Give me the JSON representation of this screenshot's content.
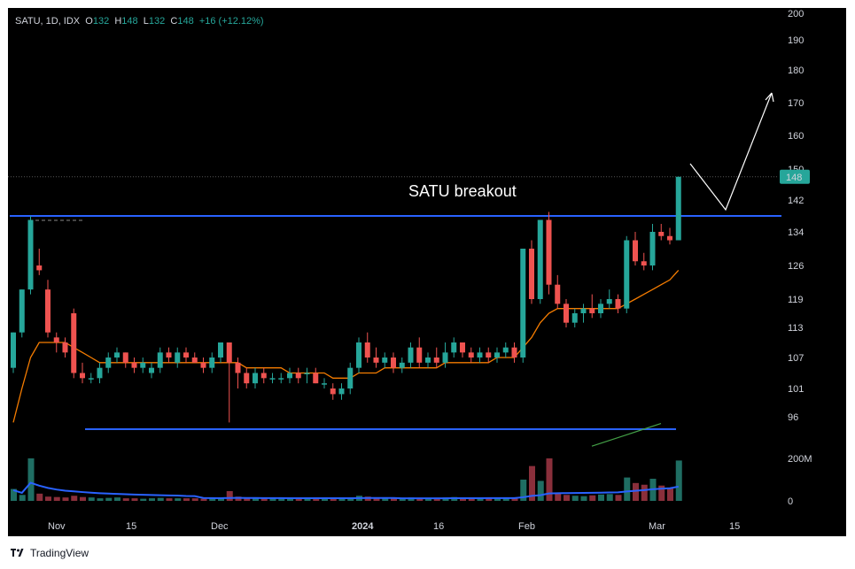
{
  "legend": {
    "symbol": "SATU, 1D, IDX",
    "o_label": "O",
    "o": "132",
    "h_label": "H",
    "h": "148",
    "l_label": "L",
    "l": "132",
    "c_label": "C",
    "c": "148",
    "change": "+16 (+12.12%)"
  },
  "annotation": "SATU breakout",
  "brand": "TradingView",
  "colors": {
    "up": "#26a69a",
    "down": "#ef5350",
    "level_line": "#2962ff",
    "ema": "#f57c00",
    "vol_ma": "#2962ff",
    "long_ma": "#43a047",
    "arrow": "#ffffff",
    "bg": "#000000"
  },
  "chart_data": {
    "type": "candlestick",
    "symbol": "SATU",
    "timeframe": "1D",
    "exchange": "IDX",
    "y_ticks": [
      "200",
      "190",
      "180",
      "170",
      "160",
      "150",
      "142",
      "134",
      "126",
      "119",
      "113",
      "107",
      "101",
      "96"
    ],
    "volume_ticks": [
      "200M",
      "0"
    ],
    "x_ticks": [
      "Nov",
      "15",
      "Dec",
      "2024",
      "16",
      "Feb",
      "Mar",
      "15"
    ],
    "last_price": "148",
    "candles": [
      [
        105,
        112,
        104,
        112
      ],
      [
        112,
        121,
        111,
        121
      ],
      [
        121,
        138,
        120,
        137
      ],
      [
        126,
        130,
        124,
        125
      ],
      [
        121,
        123,
        111,
        112
      ],
      [
        111,
        112,
        108,
        110
      ],
      [
        110,
        111,
        107,
        108
      ],
      [
        116,
        117,
        103,
        104
      ],
      [
        104,
        106,
        102,
        103
      ],
      [
        103,
        104,
        102,
        103
      ],
      [
        103,
        106,
        102,
        105
      ],
      [
        105,
        108,
        104,
        107
      ],
      [
        107,
        109,
        106,
        108
      ],
      [
        108,
        108,
        105,
        106
      ],
      [
        106,
        107,
        104,
        105
      ],
      [
        105,
        107,
        104,
        106
      ],
      [
        104,
        106,
        103,
        105
      ],
      [
        105,
        109,
        104,
        108
      ],
      [
        108,
        109,
        106,
        107
      ],
      [
        106,
        109,
        105,
        108
      ],
      [
        108,
        109,
        106,
        107
      ],
      [
        107,
        108,
        106,
        106
      ],
      [
        106,
        107,
        104,
        105
      ],
      [
        105,
        108,
        104,
        107
      ],
      [
        107,
        110,
        106,
        110
      ],
      [
        110,
        110,
        95,
        106
      ],
      [
        106,
        107,
        101,
        104
      ],
      [
        104,
        105,
        101,
        102
      ],
      [
        102,
        105,
        101,
        104
      ],
      [
        104,
        105,
        102,
        103
      ],
      [
        103,
        104,
        102,
        103
      ],
      [
        103,
        104,
        102,
        103
      ],
      [
        103,
        105,
        102,
        104
      ],
      [
        104,
        105,
        102,
        103
      ],
      [
        104,
        105,
        102,
        104
      ],
      [
        104,
        105,
        102,
        102
      ],
      [
        102,
        103,
        101,
        102
      ],
      [
        101,
        102,
        99,
        100
      ],
      [
        100,
        102,
        99,
        101
      ],
      [
        101,
        106,
        100,
        105
      ],
      [
        105,
        111,
        104,
        110
      ],
      [
        110,
        112,
        106,
        107
      ],
      [
        107,
        109,
        105,
        106
      ],
      [
        106,
        108,
        105,
        107
      ],
      [
        107,
        108,
        104,
        105
      ],
      [
        105,
        107,
        104,
        106
      ],
      [
        106,
        110,
        105,
        109
      ],
      [
        109,
        111,
        105,
        106
      ],
      [
        106,
        108,
        105,
        107
      ],
      [
        107,
        109,
        105,
        106
      ],
      [
        106,
        110,
        105,
        108
      ],
      [
        108,
        111,
        107,
        110
      ],
      [
        110,
        110,
        107,
        108
      ],
      [
        108,
        109,
        106,
        107
      ],
      [
        107,
        109,
        106,
        108
      ],
      [
        108,
        109,
        106,
        107
      ],
      [
        107,
        109,
        106,
        108
      ],
      [
        108,
        110,
        107,
        109
      ],
      [
        109,
        110,
        106,
        107
      ],
      [
        107,
        130,
        106,
        130
      ],
      [
        130,
        132,
        118,
        119
      ],
      [
        119,
        137,
        118,
        137
      ],
      [
        137,
        139,
        120,
        122
      ],
      [
        122,
        124,
        117,
        118
      ],
      [
        118,
        119,
        113,
        114
      ],
      [
        114,
        117,
        113,
        116
      ],
      [
        116,
        118,
        114,
        117
      ],
      [
        117,
        120,
        115,
        116
      ],
      [
        116,
        119,
        115,
        118
      ],
      [
        118,
        121,
        117,
        119
      ],
      [
        119,
        120,
        116,
        117
      ],
      [
        117,
        133,
        116,
        132
      ],
      [
        132,
        134,
        126,
        127
      ],
      [
        127,
        129,
        125,
        126
      ],
      [
        126,
        136,
        125,
        134
      ],
      [
        134,
        136,
        132,
        133
      ],
      [
        133,
        135,
        131,
        132
      ],
      [
        132,
        148,
        132,
        148
      ]
    ],
    "volumes": [
      28,
      14,
      100,
      17,
      10,
      9,
      8,
      12,
      9,
      8,
      6,
      7,
      8,
      6,
      6,
      5,
      6,
      7,
      6,
      6,
      6,
      6,
      5,
      6,
      7,
      23,
      10,
      8,
      6,
      6,
      6,
      5,
      5,
      6,
      5,
      5,
      5,
      5,
      6,
      8,
      12,
      10,
      8,
      7,
      6,
      6,
      8,
      7,
      6,
      6,
      8,
      9,
      7,
      6,
      6,
      6,
      7,
      7,
      6,
      50,
      82,
      47,
      100,
      18,
      14,
      12,
      11,
      13,
      15,
      16,
      14,
      55,
      42,
      38,
      52,
      36,
      30,
      95
    ],
    "ema_short": [
      95,
      101,
      107,
      110,
      110,
      110,
      110,
      109,
      108,
      107,
      106,
      106,
      106,
      106,
      106,
      106,
      106,
      106,
      106,
      106,
      106,
      106,
      106,
      106,
      106,
      106,
      106,
      105,
      105,
      105,
      105,
      105,
      104,
      104,
      104,
      104,
      104,
      103,
      103,
      103,
      104,
      104,
      104,
      105,
      105,
      105,
      105,
      105,
      105,
      105,
      106,
      106,
      106,
      106,
      106,
      106,
      107,
      107,
      107,
      109,
      111,
      114,
      116,
      117,
      117,
      117,
      117,
      117,
      117,
      117,
      117,
      118,
      119,
      120,
      121,
      122,
      123,
      125
    ],
    "long_ma": [
      93,
      94,
      95,
      96,
      97
    ],
    "resistance": 138,
    "support": 96,
    "prior_high_marker": 138
  }
}
